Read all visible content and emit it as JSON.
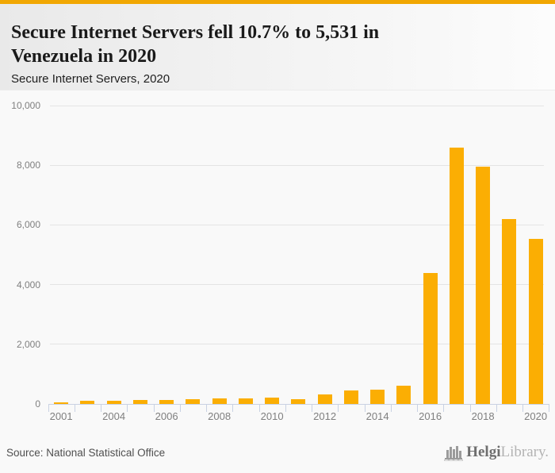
{
  "header": {
    "title_line1": "Secure Internet Servers fell 10.7% to 5,531 in",
    "title_line2": "Venezuela in 2020",
    "subtitle": "Secure Internet Servers, 2020"
  },
  "footer": {
    "source": "Source: National Statistical Office",
    "logo_text_primary": "Helgi",
    "logo_text_secondary": "Library."
  },
  "colors": {
    "accent": "#f1a702",
    "bar": "#fbae03",
    "grid": "#e4e4e4",
    "axis": "#c9d2e3",
    "tick_label": "#7f7f7f",
    "title_text": "#1a1a1a"
  },
  "chart_data": {
    "type": "bar",
    "title": "Secure Internet Servers fell 10.7% to 5,531 in Venezuela in 2020",
    "subtitle": "Secure Internet Servers, 2020",
    "xlabel": "",
    "ylabel": "",
    "ylim": [
      0,
      10000
    ],
    "grid": true,
    "legend": false,
    "categories": [
      "2001",
      "2003",
      "2004",
      "2005",
      "2006",
      "2007",
      "2008",
      "2009",
      "2010",
      "2011",
      "2012",
      "2013",
      "2014",
      "2015",
      "2016",
      "2017",
      "2018",
      "2019",
      "2020"
    ],
    "values": [
      60,
      110,
      115,
      145,
      140,
      165,
      180,
      195,
      200,
      160,
      320,
      440,
      490,
      620,
      4400,
      8600,
      7940,
      6194,
      5531
    ],
    "y_ticks": [
      0,
      2000,
      4000,
      6000,
      8000,
      10000
    ],
    "y_tick_labels": [
      "0",
      "2,000",
      "4,000",
      "6,000",
      "8,000",
      "10,000"
    ],
    "x_tick_labels": [
      "2001",
      "2004",
      "2006",
      "2008",
      "2010",
      "2012",
      "2014",
      "2016",
      "2018",
      "2020"
    ],
    "highlight_value": "5,531",
    "highlight_year": "2020",
    "change_pct": "-10.7%"
  }
}
